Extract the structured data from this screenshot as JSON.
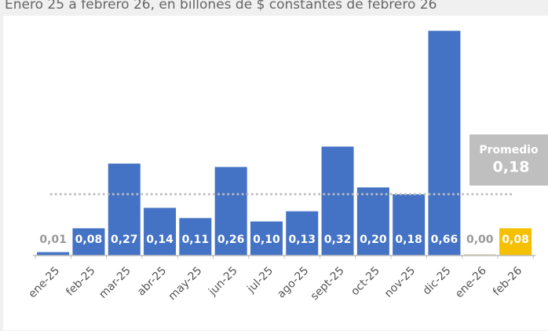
{
  "chart_data": {
    "type": "bar",
    "subtitle": "Enero 25 a febrero 26, en billones de $ constantes de febrero 26",
    "categories": [
      "ene-25",
      "feb-25",
      "mar-25",
      "abr-25",
      "may-25",
      "jun-25",
      "jul-25",
      "ago-25",
      "sept-25",
      "oct-25",
      "nov-25",
      "dic-25",
      "ene-26",
      "feb-26"
    ],
    "values": [
      0.01,
      0.08,
      0.27,
      0.14,
      0.11,
      0.26,
      0.1,
      0.13,
      0.32,
      0.2,
      0.18,
      0.66,
      0.0,
      0.08
    ],
    "value_labels": [
      "0,01",
      "0,08",
      "0,27",
      "0,14",
      "0,11",
      "0,26",
      "0,10",
      "0,13",
      "0,32",
      "0,20",
      "0,18",
      "0,66",
      "0,00",
      "0,08"
    ],
    "colors": [
      "#4472c4",
      "#4472c4",
      "#4472c4",
      "#4472c4",
      "#4472c4",
      "#4472c4",
      "#4472c4",
      "#4472c4",
      "#4472c4",
      "#4472c4",
      "#4472c4",
      "#4472c4",
      "#e6dcc3",
      "#f5c000"
    ],
    "average": {
      "label": "Promedio",
      "value": 0.18,
      "value_label": "0,18"
    }
  }
}
